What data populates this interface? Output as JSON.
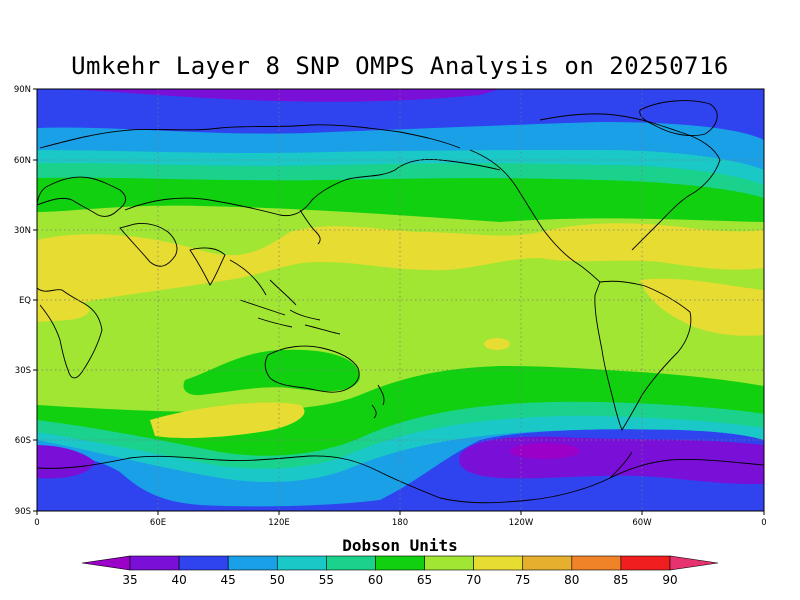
{
  "title": "Umkehr Layer 8 SNP OMPS Analysis on 20250716",
  "axes": {
    "lat_labels": [
      "90N",
      "60N",
      "30N",
      "EQ",
      "30S",
      "60S",
      "90S"
    ],
    "lon_labels": [
      "0",
      "60E",
      "120E",
      "180",
      "120W",
      "60W",
      "0"
    ]
  },
  "colorbar": {
    "title": "Dobson Units",
    "levels": [
      "35",
      "40",
      "45",
      "50",
      "55",
      "60",
      "65",
      "70",
      "75",
      "80",
      "85",
      "90"
    ],
    "colors": [
      "#9a00c8",
      "#7a10d8",
      "#2f43ef",
      "#1aa0e6",
      "#1ac8c8",
      "#1ad28c",
      "#10d010",
      "#a0e632",
      "#e6dc32",
      "#e6af2d",
      "#f08228",
      "#f01e1e",
      "#e6326e"
    ]
  },
  "chart_data": {
    "type": "heatmap",
    "title": "Umkehr Layer 8 SNP OMPS Analysis on 20250716",
    "units": "Dobson Units",
    "x_range": [
      0,
      360
    ],
    "y_range": [
      -90,
      90
    ],
    "x_ticks": [
      "0",
      "60E",
      "120E",
      "180",
      "120W",
      "60W",
      "0"
    ],
    "y_ticks": [
      "90N",
      "60N",
      "30N",
      "EQ",
      "30S",
      "60S",
      "90S"
    ],
    "contour_levels": [
      35,
      40,
      45,
      50,
      55,
      60,
      65,
      70,
      75,
      80,
      85,
      90
    ],
    "zonal_profile_DU": [
      {
        "lat": 85,
        "value": 40
      },
      {
        "lat": 75,
        "value": 47
      },
      {
        "lat": 65,
        "value": 53
      },
      {
        "lat": 55,
        "value": 60
      },
      {
        "lat": 45,
        "value": 64
      },
      {
        "lat": 30,
        "value": 69
      },
      {
        "lat": 15,
        "value": 71
      },
      {
        "lat": 0,
        "value": 68
      },
      {
        "lat": -15,
        "value": 67
      },
      {
        "lat": -30,
        "value": 65
      },
      {
        "lat": -40,
        "value": 62
      },
      {
        "lat": -50,
        "value": 55
      },
      {
        "lat": -60,
        "value": 47
      },
      {
        "lat": -70,
        "value": 41
      },
      {
        "lat": -85,
        "value": 42
      }
    ],
    "grid": true
  }
}
